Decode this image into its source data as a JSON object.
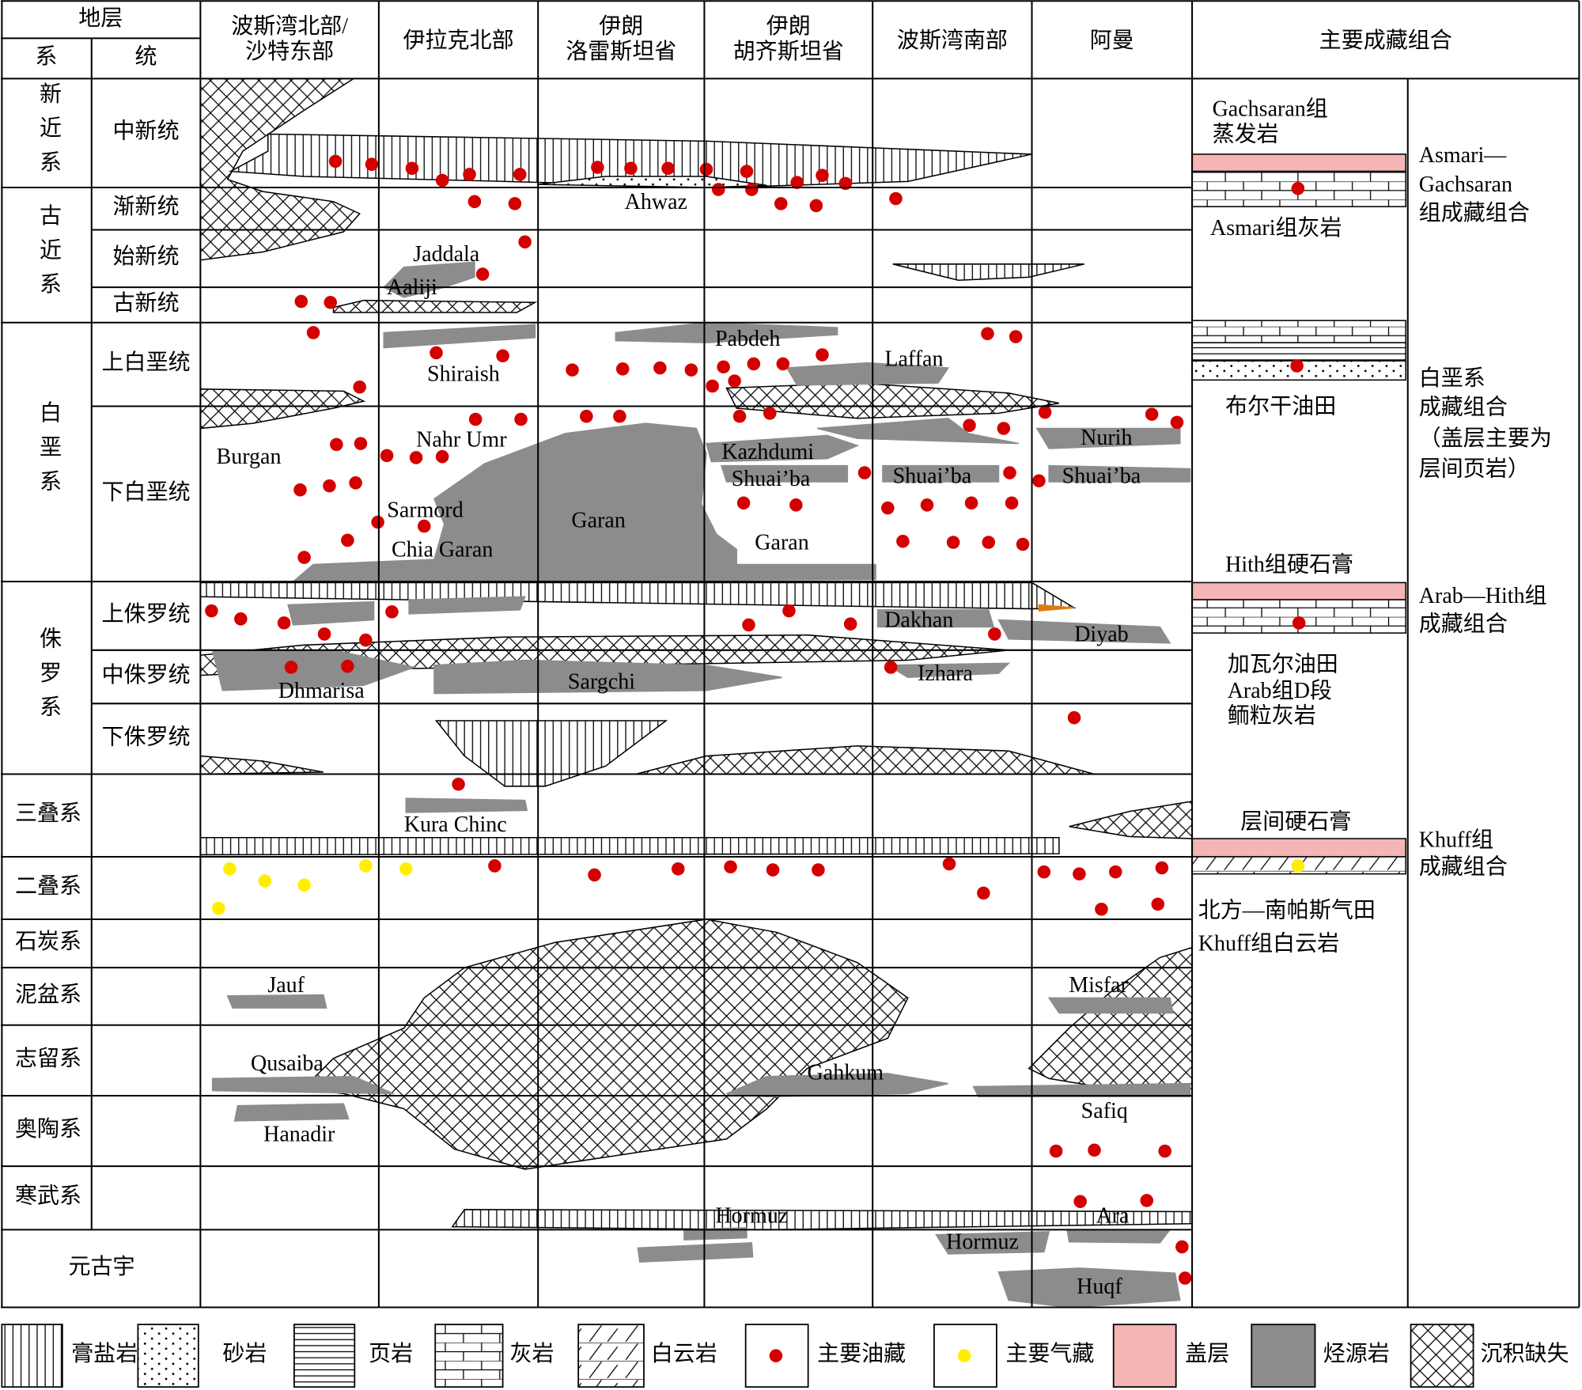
{
  "header": {
    "strata": "地层",
    "system": "系",
    "series": "统",
    "regions": [
      [
        "波斯湾北部/",
        "沙特东部"
      ],
      [
        "伊拉克北部"
      ],
      [
        "伊朗",
        "洛雷斯坦省"
      ],
      [
        "伊朗",
        "胡齐斯坦省"
      ],
      [
        "波斯湾南部"
      ],
      [
        "阿曼"
      ]
    ],
    "assemblage": "主要成藏组合"
  },
  "systems": [
    {
      "label": "新近系",
      "series": [
        "中新统"
      ]
    },
    {
      "label": "古近系",
      "series": [
        "渐新统",
        "始新统",
        "古新统"
      ]
    },
    {
      "label": "白垩系",
      "series": [
        "上白垩统",
        "下白垩统"
      ]
    },
    {
      "label": "侏罗系",
      "series": [
        "上侏罗统",
        "中侏罗统",
        "下侏罗统"
      ]
    },
    {
      "label": "三叠系",
      "series": []
    },
    {
      "label": "二叠系",
      "series": []
    },
    {
      "label": "石炭系",
      "series": []
    },
    {
      "label": "泥盆系",
      "series": []
    },
    {
      "label": "志留系",
      "series": []
    },
    {
      "label": "奥陶系",
      "series": []
    },
    {
      "label": "寒武系",
      "series": []
    },
    {
      "label": "元古宇",
      "series": []
    }
  ],
  "formations": [
    "Ahwaz",
    "Jaddala",
    "Aaliji",
    "Pabdeh",
    "Laffan",
    "Shiraish",
    "Nahr Umr",
    "Burgan",
    "Kazhdumi",
    "Shuai’ba",
    "Shuai’ba",
    "Nurih",
    "Shuai’ba",
    "Sarmord",
    "Garan",
    "Garan",
    "Chia Garan",
    "Dakhan",
    "Diyab",
    "Dhmarisa",
    "Sargchi",
    "Izhara",
    "Kura Chinc",
    "Jauf",
    "Misfar",
    "Qusaiba",
    "Gahkum",
    "Hanadir",
    "Safiq",
    "Hormuz",
    "Ara",
    "Hormuz",
    "Huqf"
  ],
  "right_notes": [
    "Gachsaran组",
    "蒸发岩",
    "Asmari组灰岩",
    "布尔干油田",
    "Hith组硬石膏",
    "加瓦尔油田",
    "Arab组D段",
    "鲕粒灰岩",
    "层间硬石膏",
    "北方—南帕斯气田",
    "Khuff组白云岩"
  ],
  "assemblages": [
    "Asmari—",
    "Gachsaran",
    "组成藏组合",
    "白垩系",
    "成藏组合",
    "（盖层主要为",
    "层间页岩）",
    "Arab—Hith组",
    "成藏组合",
    "Khuff组",
    "成藏组合"
  ],
  "legend": [
    "膏盐岩",
    "砂岩",
    "页岩",
    "灰岩",
    "白云岩",
    "主要油藏",
    "主要气藏",
    "盖层",
    "烃源岩",
    "沉积缺失"
  ]
}
